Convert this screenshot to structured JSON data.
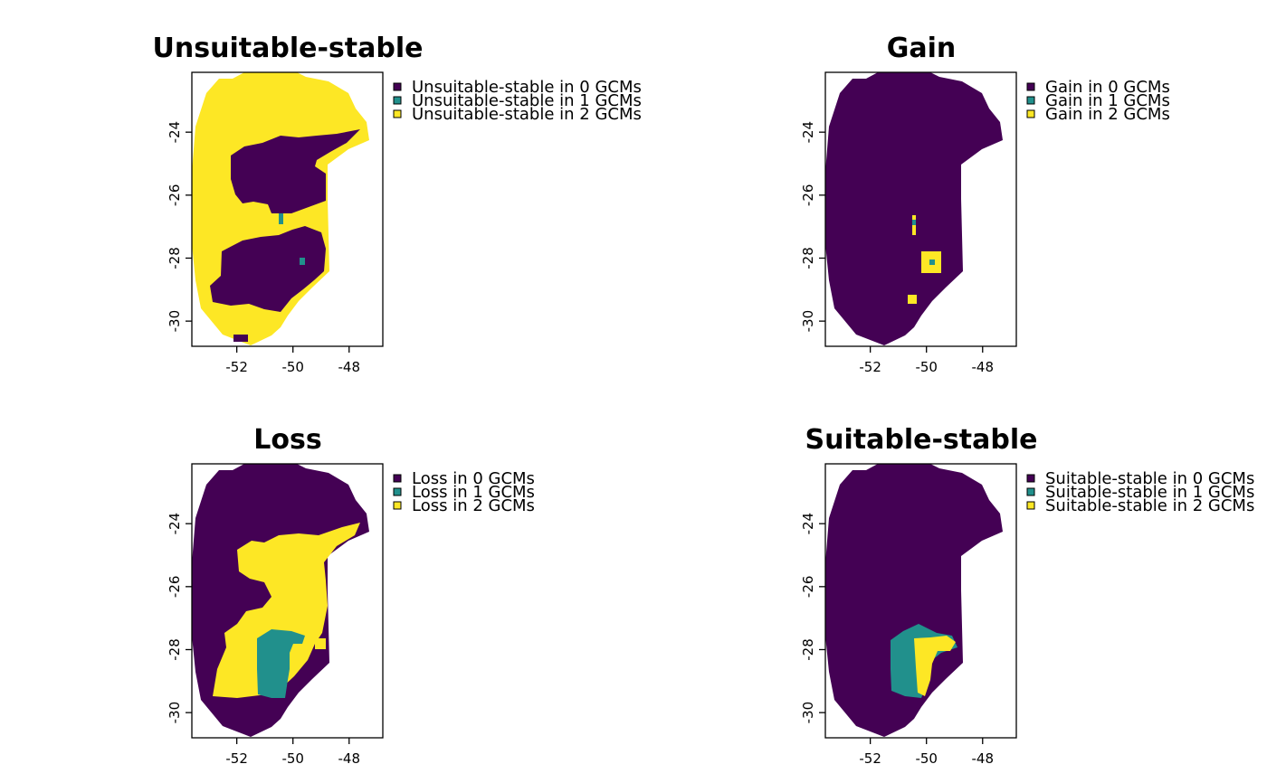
{
  "colors": {
    "zero": "#440154",
    "one": "#21908C",
    "two": "#FDE725"
  },
  "x_ticks": [
    "-52",
    "-50",
    "-48"
  ],
  "y_ticks": [
    "-24",
    "-26",
    "-28",
    "-30"
  ],
  "chart_data": [
    {
      "type": "heatmap",
      "title": "Unsuitable-stable",
      "legend": [
        "Unsuitable-stable in 0 GCMs",
        "Unsuitable-stable in 1 GCMs",
        "Unsuitable-stable in 2 GCMs"
      ],
      "xlim": [
        -53.6,
        -46.8
      ],
      "ylim": [
        -30.8,
        -22.1
      ],
      "legend_position": "right"
    },
    {
      "type": "heatmap",
      "title": "Gain",
      "legend": [
        "Gain in 0 GCMs",
        "Gain in 1 GCMs",
        "Gain in 2 GCMs"
      ],
      "xlim": [
        -53.6,
        -46.8
      ],
      "ylim": [
        -30.8,
        -22.1
      ],
      "legend_position": "right"
    },
    {
      "type": "heatmap",
      "title": "Loss",
      "legend": [
        "Loss in 0 GCMs",
        "Loss in 1 GCMs",
        "Loss in 2 GCMs"
      ],
      "xlim": [
        -53.6,
        -46.8
      ],
      "ylim": [
        -30.8,
        -22.1
      ],
      "legend_position": "right"
    },
    {
      "type": "heatmap",
      "title": "Suitable-stable",
      "legend": [
        "Suitable-stable in 0 GCMs",
        "Suitable-stable in 1 GCMs",
        "Suitable-stable in 2 GCMs"
      ],
      "xlim": [
        -53.6,
        -46.8
      ],
      "ylim": [
        -30.8,
        -22.1
      ],
      "legend_position": "right"
    }
  ]
}
